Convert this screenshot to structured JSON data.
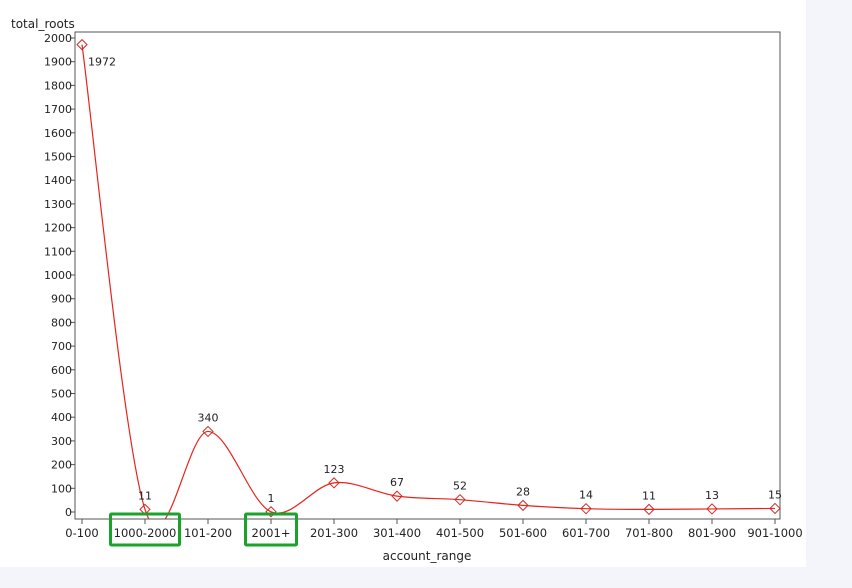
{
  "chart_data": {
    "type": "line",
    "title": "",
    "xlabel": "account_range",
    "ylabel": "total_roots",
    "categories": [
      "0-100",
      "1000-2000",
      "101-200",
      "2001+",
      "201-300",
      "301-400",
      "401-500",
      "501-600",
      "601-700",
      "701-800",
      "801-900",
      "901-1000"
    ],
    "series": [
      {
        "values": [
          1972,
          11,
          340,
          1,
          123,
          67,
          52,
          28,
          14,
          11,
          13,
          15
        ]
      }
    ],
    "data_labels": [
      "1972",
      "11",
      "340",
      "1",
      "123",
      "67",
      "52",
      "28",
      "14",
      "11",
      "13",
      "15"
    ],
    "ylim": [
      0,
      2000
    ],
    "yticks": [
      0,
      100,
      200,
      300,
      400,
      500,
      600,
      700,
      800,
      900,
      1000,
      1100,
      1200,
      1300,
      1400,
      1500,
      1600,
      1700,
      1800,
      1900,
      2000
    ],
    "ytick_labels": [
      "0",
      "100",
      "200",
      "300",
      "400",
      "500",
      "600",
      "700",
      "800",
      "900",
      "1000",
      "1100",
      "1200",
      "1300",
      "1400",
      "1500",
      "1600",
      "1700",
      "1800",
      "1900",
      "2000"
    ],
    "grid": false,
    "legend": "none",
    "highlighted_categories": [
      "1000-2000",
      "2001+"
    ],
    "colors": {
      "line": "#e8241c",
      "marker": "#d12a24",
      "highlight": "#1aa32a",
      "axis": "#555555"
    }
  }
}
